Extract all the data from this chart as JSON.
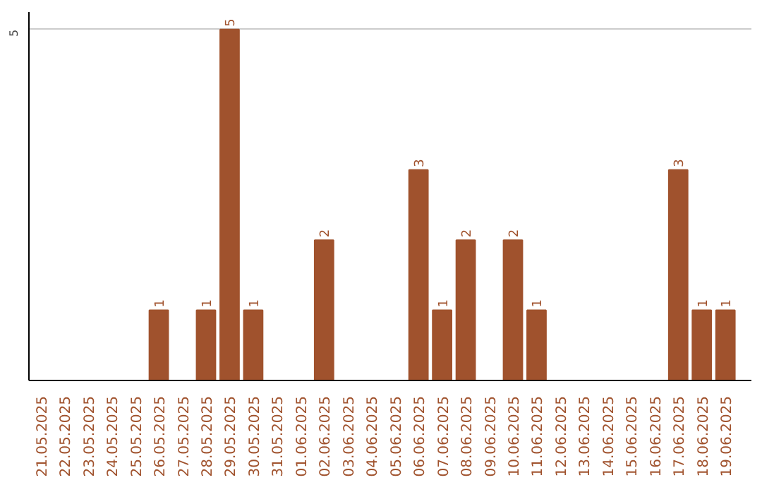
{
  "chart_data": {
    "type": "bar",
    "categories": [
      "21.05.2025",
      "22.05.2025",
      "23.05.2025",
      "24.05.2025",
      "25.05.2025",
      "26.05.2025",
      "27.05.2025",
      "28.05.2025",
      "29.05.2025",
      "30.05.2025",
      "31.05.2025",
      "01.06.2025",
      "02.06.2025",
      "03.06.2025",
      "04.06.2025",
      "05.06.2025",
      "06.06.2025",
      "07.06.2025",
      "08.06.2025",
      "09.06.2025",
      "10.06.2025",
      "11.06.2025",
      "12.06.2025",
      "13.06.2025",
      "14.06.2025",
      "15.06.2025",
      "16.06.2025",
      "17.06.2025",
      "18.06.2025",
      "19.06.2025"
    ],
    "values": [
      0,
      0,
      0,
      0,
      0,
      1,
      0,
      1,
      5,
      1,
      0,
      0,
      2,
      0,
      0,
      0,
      3,
      1,
      2,
      0,
      2,
      1,
      0,
      0,
      0,
      0,
      0,
      3,
      1,
      1
    ],
    "value_labels": [
      null,
      null,
      null,
      null,
      null,
      "1",
      null,
      "1",
      "5",
      "1",
      null,
      null,
      "2",
      null,
      null,
      null,
      "3",
      "1",
      "2",
      null,
      "2",
      "1",
      null,
      null,
      null,
      null,
      null,
      "3",
      "1",
      "1"
    ],
    "color": "#a0522d",
    "ylim": [
      0,
      5.25
    ],
    "yticks": [
      5
    ],
    "grid": "y"
  }
}
